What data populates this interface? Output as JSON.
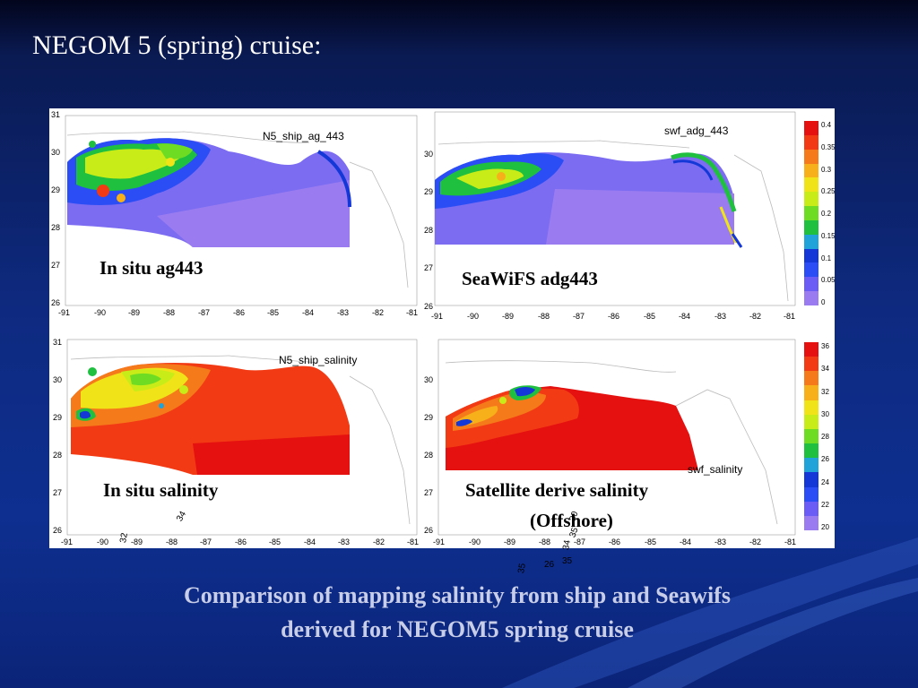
{
  "slide": {
    "title": "NEGOM 5 (spring) cruise:",
    "bottom_title_line1": "Comparison of mapping salinity from ship and Seawifs",
    "bottom_title_line2": "derived for NEGOM5 spring cruise"
  },
  "panels": [
    {
      "id": "ship-ag443",
      "title": "N5_ship_ag_443",
      "caption": "In situ ag443",
      "lat_ticks": [
        "31",
        "30",
        "29",
        "28",
        "27",
        "26"
      ],
      "lon_ticks": [
        "-91",
        "-90",
        "-89",
        "-88",
        "-87",
        "-86",
        "-85",
        "-84",
        "-83",
        "-82",
        "-81"
      ]
    },
    {
      "id": "swf-adg443",
      "title": "swf_adg_443",
      "caption": "SeaWiFS adg443",
      "lat_ticks": [
        "30",
        "29",
        "28",
        "27",
        "26"
      ],
      "lon_ticks": [
        "-91",
        "-90",
        "-89",
        "-88",
        "-87",
        "-86",
        "-85",
        "-84",
        "-83",
        "-82",
        "-81"
      ]
    },
    {
      "id": "ship-salinity",
      "title": "N5_ship_salinity",
      "caption": "In situ salinity",
      "lat_ticks": [
        "31",
        "30",
        "29",
        "28",
        "27",
        "26"
      ],
      "lon_ticks": [
        "-91",
        "-90",
        "-89",
        "-88",
        "-87",
        "-86",
        "-85",
        "-84",
        "-83",
        "-82",
        "-81"
      ],
      "contour_labels": [
        "34",
        "32"
      ]
    },
    {
      "id": "swf-salinity",
      "title": "swf_salinity",
      "caption_line1": "Satellite derive salinity",
      "caption_line2": "(Offshore)",
      "lat_ticks": [
        "30",
        "29",
        "28",
        "27",
        "26"
      ],
      "lon_ticks": [
        "-91",
        "-90",
        "-89",
        "-88",
        "-87",
        "-86",
        "-85",
        "-84",
        "-83",
        "-82",
        "-81"
      ],
      "contour_labels": [
        "30",
        "35",
        "34",
        "26",
        "35",
        "35"
      ]
    }
  ],
  "colorbars": [
    {
      "id": "adg",
      "labels": [
        "0.4",
        "0.35",
        "0.3",
        "0.25",
        "0.2",
        "0.15",
        "0.1",
        "0.05",
        "0"
      ]
    },
    {
      "id": "salinity",
      "labels": [
        "36",
        "34",
        "32",
        "30",
        "28",
        "26",
        "24",
        "22",
        "20"
      ]
    }
  ],
  "colors": {
    "scale": [
      "#9b7cf0",
      "#6a5cf5",
      "#2a4df5",
      "#1438d8",
      "#1fa3d8",
      "#1fbf40",
      "#6fdc24",
      "#c8ec18",
      "#f0e418",
      "#f7b01a",
      "#f57a1a",
      "#f23a14",
      "#e51010"
    ]
  }
}
